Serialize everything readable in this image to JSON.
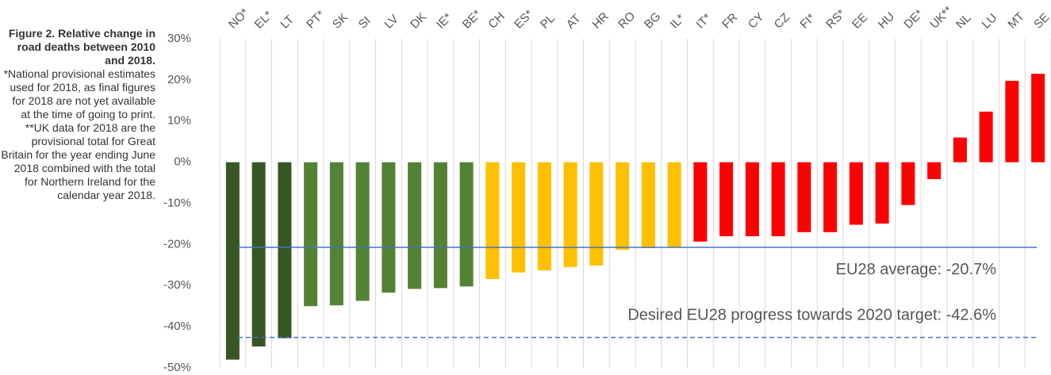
{
  "chart_data": {
    "type": "bar",
    "title": "Figure 2. Relative change in road deaths between 2010 and 2018.",
    "note": "*National provisional estimates used for 2018, as final figures for 2018 are not yet available at the time of going to print. **UK data for 2018 are the provisional total for Great Britain for the year ending June 2018 combined with the total for Northern Ireland for the calendar year 2018.",
    "categories": [
      "NO*",
      "EL*",
      "LT",
      "PT*",
      "SK",
      "SI",
      "LV",
      "DK",
      "IE*",
      "BE*",
      "CH",
      "ES*",
      "PL",
      "AT",
      "HR",
      "RO",
      "BG",
      "IL*",
      "IT*",
      "FR",
      "CY",
      "CZ",
      "FI*",
      "RS*",
      "EE",
      "HU",
      "DE*",
      "UK**",
      "NL",
      "LU",
      "MT",
      "SE"
    ],
    "values": [
      -48,
      -44.8,
      -42.8,
      -35,
      -34.8,
      -33.7,
      -31.7,
      -30.8,
      -30.6,
      -30.2,
      -28.4,
      -26.8,
      -26.3,
      -25.5,
      -25.1,
      -21.3,
      -20.9,
      -20.7,
      -19.3,
      -18,
      -18,
      -18,
      -17,
      -17,
      -15.2,
      -14.9,
      -10.4,
      -4.1,
      6,
      12.3,
      19.8,
      21.5
    ],
    "colors": [
      "#375623",
      "#375623",
      "#375623",
      "#548235",
      "#548235",
      "#548235",
      "#548235",
      "#548235",
      "#548235",
      "#548235",
      "#ffc000",
      "#ffc000",
      "#ffc000",
      "#ffc000",
      "#ffc000",
      "#ffc000",
      "#ffc000",
      "#ffc000",
      "#ff0000",
      "#ff0000",
      "#ff0000",
      "#ff0000",
      "#ff0000",
      "#ff0000",
      "#ff0000",
      "#ff0000",
      "#ff0000",
      "#ff0000",
      "#ff0000",
      "#ff0000",
      "#ff0000",
      "#ff0000"
    ],
    "ylim": [
      -50,
      30
    ],
    "yticks": [
      {
        "value": -50,
        "label": "-50%"
      },
      {
        "value": -40,
        "label": "-40%"
      },
      {
        "value": -30,
        "label": "-30%"
      },
      {
        "value": -20,
        "label": "-20%"
      },
      {
        "value": -10,
        "label": "-10%"
      },
      {
        "value": 0,
        "label": "0%"
      },
      {
        "value": 10,
        "label": "10%"
      },
      {
        "value": 20,
        "label": "20%"
      },
      {
        "value": 30,
        "label": "30%"
      }
    ],
    "grid": "x",
    "reference_lines": [
      {
        "value": -20.7,
        "label": "EU28 average: -20.7%",
        "style": "solid",
        "color": "#4472c4"
      },
      {
        "value": -42.6,
        "label": "Desired EU28 progress towards 2020 target: -42.6%",
        "style": "dashed",
        "color": "#4472c4"
      }
    ]
  }
}
